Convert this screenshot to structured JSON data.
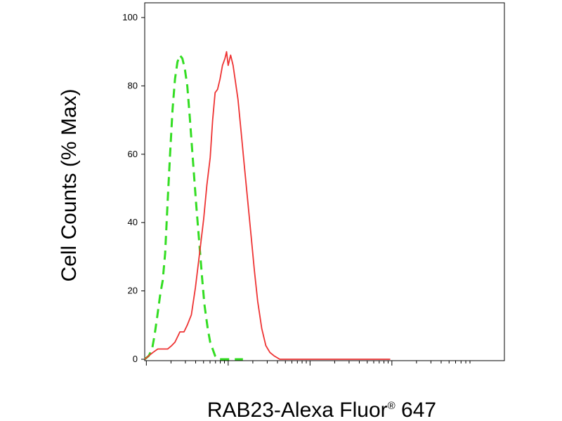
{
  "chart_data": {
    "type": "line",
    "title": "",
    "xlabel_main": "RAB23-Alexa Fluor",
    "xlabel_sup": "®",
    "xlabel_tail": " 647",
    "ylabel": "Cell Counts (% Max)",
    "ylim": [
      0,
      100
    ],
    "y_ticks": [
      "0",
      "20",
      "40",
      "60",
      "80",
      "100"
    ],
    "y_tick_values": [
      0,
      20,
      40,
      60,
      80,
      100
    ],
    "x_scale": "log",
    "x_decades": 3,
    "grid": false,
    "legend": "none",
    "series": [
      {
        "color": "#33dd22",
        "style": "dashed",
        "points": [
          [
            0.0,
            0
          ],
          [
            0.05,
            1
          ],
          [
            0.09,
            3
          ],
          [
            0.12,
            7
          ],
          [
            0.15,
            12
          ],
          [
            0.19,
            19
          ],
          [
            0.22,
            23
          ],
          [
            0.25,
            31
          ],
          [
            0.28,
            46
          ],
          [
            0.31,
            60
          ],
          [
            0.34,
            73
          ],
          [
            0.37,
            82
          ],
          [
            0.4,
            87
          ],
          [
            0.43,
            89
          ],
          [
            0.46,
            88
          ],
          [
            0.49,
            85
          ],
          [
            0.52,
            80
          ],
          [
            0.55,
            71
          ],
          [
            0.59,
            58
          ],
          [
            0.63,
            45
          ],
          [
            0.67,
            33
          ],
          [
            0.7,
            24
          ],
          [
            0.73,
            16
          ],
          [
            0.77,
            9
          ],
          [
            0.8,
            5
          ],
          [
            0.83,
            3
          ],
          [
            0.86,
            1
          ],
          [
            0.9,
            0
          ],
          [
            1.2,
            0
          ]
        ]
      },
      {
        "color": "#ee3333",
        "style": "solid",
        "points": [
          [
            0.0,
            0
          ],
          [
            0.05,
            1
          ],
          [
            0.1,
            2
          ],
          [
            0.16,
            3
          ],
          [
            0.22,
            3
          ],
          [
            0.28,
            3
          ],
          [
            0.33,
            4
          ],
          [
            0.37,
            5
          ],
          [
            0.43,
            8
          ],
          [
            0.48,
            8
          ],
          [
            0.52,
            10
          ],
          [
            0.57,
            13
          ],
          [
            0.62,
            21
          ],
          [
            0.67,
            31
          ],
          [
            0.72,
            41
          ],
          [
            0.76,
            51
          ],
          [
            0.8,
            59
          ],
          [
            0.83,
            70
          ],
          [
            0.86,
            78
          ],
          [
            0.89,
            79
          ],
          [
            0.92,
            82
          ],
          [
            0.95,
            86
          ],
          [
            0.98,
            88
          ],
          [
            1.0,
            90
          ],
          [
            1.02,
            86
          ],
          [
            1.05,
            89
          ],
          [
            1.08,
            86
          ],
          [
            1.11,
            81
          ],
          [
            1.14,
            76
          ],
          [
            1.18,
            66
          ],
          [
            1.22,
            56
          ],
          [
            1.26,
            46
          ],
          [
            1.3,
            36
          ],
          [
            1.34,
            26
          ],
          [
            1.38,
            17
          ],
          [
            1.43,
            9
          ],
          [
            1.48,
            4
          ],
          [
            1.53,
            2
          ],
          [
            1.58,
            1
          ],
          [
            1.65,
            0
          ],
          [
            3.0,
            0
          ]
        ]
      }
    ]
  }
}
